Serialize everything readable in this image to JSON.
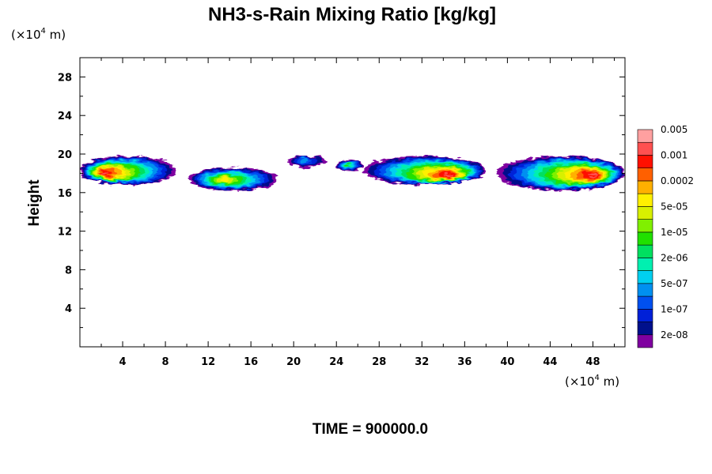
{
  "chart_data": {
    "type": "heatmap",
    "title": "NH3-s-Rain Mixing Ratio [kg/kg]",
    "xlabel": "",
    "ylabel": "Height",
    "x_unit": "(×10",
    "x_unit_exp": "4",
    "x_unit_tail": " m)",
    "y_unit": "(×10",
    "y_unit_exp": "4",
    "y_unit_tail": " m)",
    "xlim": [
      0,
      51
    ],
    "ylim": [
      0,
      30
    ],
    "x_ticks": [
      4,
      8,
      12,
      16,
      20,
      24,
      28,
      32,
      36,
      40,
      44,
      48
    ],
    "x_tick_labels": [
      "4",
      "8",
      "12",
      "16",
      "20",
      "24",
      "28",
      "32",
      "36",
      "40",
      "44",
      "48"
    ],
    "y_ticks": [
      4,
      8,
      12,
      16,
      20,
      24,
      28
    ],
    "y_tick_labels": [
      "4",
      "8",
      "12",
      "16",
      "20",
      "24",
      "28"
    ],
    "colorbar": {
      "colors": [
        "#7f00a0",
        "#00108c",
        "#0020d8",
        "#0050f0",
        "#0090f0",
        "#00d0f0",
        "#00f0b0",
        "#00e060",
        "#20e000",
        "#80f000",
        "#d8f000",
        "#fff000",
        "#ffb000",
        "#ff6000",
        "#ff1000",
        "#ff5050",
        "#ffa0a0"
      ],
      "labels": [
        "2e-08",
        "1e-07",
        "5e-07",
        "2e-06",
        "1e-05",
        "5e-05",
        "0.0002",
        "0.001",
        "0.005"
      ]
    },
    "clouds": [
      {
        "x": [
          0,
          9
        ],
        "y": [
          16.8,
          19.8
        ],
        "core_x": 2.3,
        "core_y": 18.0,
        "peak_level": 15
      },
      {
        "x": [
          10.2,
          18.5
        ],
        "y": [
          16.2,
          18.6
        ],
        "core_x": 13.5,
        "core_y": 17.3,
        "peak_level": 11
      },
      {
        "x": [
          19.5,
          23
        ],
        "y": [
          18.6,
          19.8
        ],
        "core_x": 21.0,
        "core_y": 19.4,
        "peak_level": 4
      },
      {
        "x": [
          24,
          26.5
        ],
        "y": [
          18.2,
          19.4
        ],
        "core_x": 25.0,
        "core_y": 18.8,
        "peak_level": 8
      },
      {
        "x": [
          26.5,
          38
        ],
        "y": [
          16.8,
          19.8
        ],
        "core_x": 34.5,
        "core_y": 17.8,
        "peak_level": 15
      },
      {
        "x": [
          39,
          51
        ],
        "y": [
          16.2,
          19.8
        ],
        "core_x": 48.0,
        "core_y": 17.8,
        "peak_level": 15
      }
    ]
  },
  "footer": {
    "time_label": "TIME = 900000.0"
  }
}
